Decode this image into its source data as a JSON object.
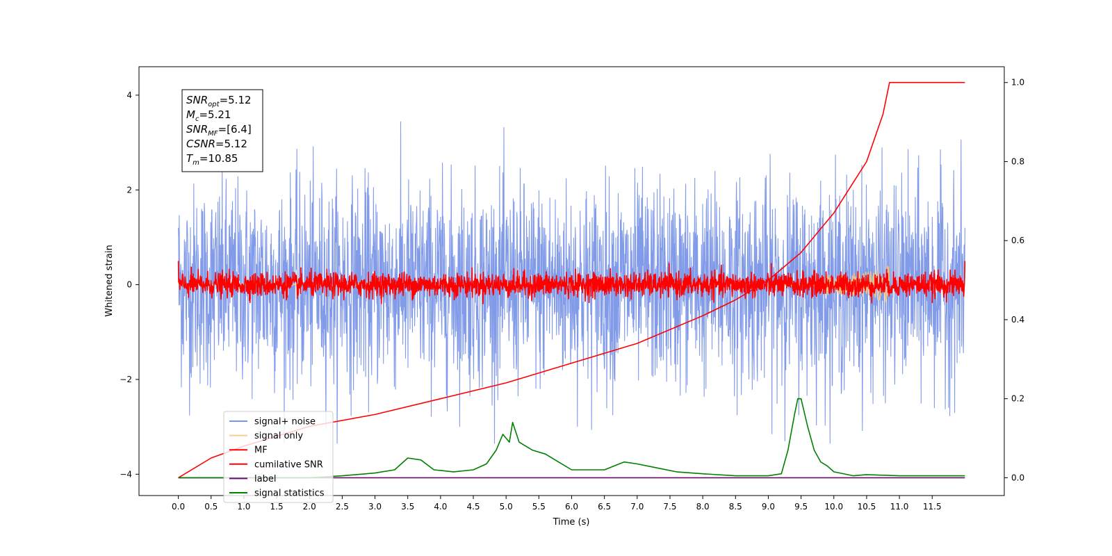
{
  "chart_data": {
    "type": "line",
    "title": "",
    "xlabel": "Time (s)",
    "ylabel": "Whitened strain",
    "xlim": [
      -0.6,
      12.6
    ],
    "ylim": [
      -4.45,
      4.6
    ],
    "y2lim": [
      -0.045,
      1.04
    ],
    "xticks": [
      0.0,
      0.5,
      1.0,
      1.5,
      2.0,
      2.5,
      3.0,
      3.5,
      4.0,
      4.5,
      5.0,
      5.5,
      6.0,
      6.5,
      7.0,
      7.5,
      8.0,
      8.5,
      9.0,
      9.5,
      10.0,
      10.5,
      11.0,
      11.5
    ],
    "xtick_labels": [
      "0.0",
      "0.5",
      "1.0",
      "1.5",
      "2.0",
      "2.5",
      "3.0",
      "3.5",
      "4.0",
      "4.5",
      "5.0",
      "5.5",
      "6.0",
      "6.5",
      "7.0",
      "7.5",
      "8.0",
      "8.5",
      "9.0",
      "9.5",
      "10.0",
      "10.5",
      "11.0",
      "11.5"
    ],
    "yticks": [
      -4,
      -2,
      0,
      2,
      4
    ],
    "ytick_labels": [
      "−4",
      "−2",
      "0",
      "2",
      "4"
    ],
    "y2ticks": [
      0.0,
      0.2,
      0.4,
      0.6,
      0.8,
      1.0
    ],
    "y2tick_labels": [
      "0.0",
      "0.2",
      "0.4",
      "0.6",
      "0.8",
      "1.0"
    ],
    "grid": false,
    "legend_position": "lower-left",
    "annotation": {
      "lines": [
        {
          "base": "SNR",
          "sub": "opt",
          "value": "=5.12"
        },
        {
          "base": "M",
          "sub": "c",
          "value": "=5.21"
        },
        {
          "base": "SNR",
          "sub": "MF",
          "value": "=[6.4]"
        },
        {
          "base": "CSNR",
          "sub": "",
          "value": "=5.12"
        },
        {
          "base": "T",
          "sub": "m",
          "value": "=10.85"
        }
      ]
    },
    "series": [
      {
        "name": "signal+ noise",
        "color": "#7b96e8",
        "axis": "left",
        "kind": "noise",
        "x_range": [
          0.0,
          12.0
        ],
        "mean": 0.0,
        "amplitude_typical": 2.0,
        "min": -3.35,
        "max": 4.15
      },
      {
        "name": "signal only",
        "color": "#f5c77e",
        "axis": "left",
        "kind": "chirp",
        "x_range": [
          0.0,
          10.85
        ],
        "peak_time": 10.85,
        "peak_amplitude": 0.55
      },
      {
        "name": "MF",
        "color": "#ff0000",
        "axis": "left",
        "kind": "noise",
        "x_range": [
          0.0,
          12.0
        ],
        "mean": 0.0,
        "amplitude_typical": 0.25,
        "min": -0.4,
        "max": 0.5
      },
      {
        "name": "cumilative SNR",
        "color": "#ff0000",
        "axis": "right",
        "kind": "curve",
        "points": [
          [
            0.0,
            0.0
          ],
          [
            0.5,
            0.05
          ],
          [
            1.0,
            0.08
          ],
          [
            2.0,
            0.13
          ],
          [
            3.0,
            0.16
          ],
          [
            4.0,
            0.2
          ],
          [
            5.0,
            0.24
          ],
          [
            6.0,
            0.29
          ],
          [
            7.0,
            0.34
          ],
          [
            8.0,
            0.41
          ],
          [
            8.5,
            0.45
          ],
          [
            9.0,
            0.5
          ],
          [
            9.5,
            0.57
          ],
          [
            10.0,
            0.67
          ],
          [
            10.5,
            0.8
          ],
          [
            10.75,
            0.92
          ],
          [
            10.85,
            1.0
          ],
          [
            12.0,
            1.0
          ]
        ]
      },
      {
        "name": "label",
        "color": "#6a0a6a",
        "axis": "right",
        "kind": "curve",
        "points": [
          [
            0.0,
            0.0
          ],
          [
            12.0,
            0.0
          ]
        ]
      },
      {
        "name": "signal statistics",
        "color": "#008000",
        "axis": "right",
        "kind": "curve",
        "points": [
          [
            0.0,
            0.0
          ],
          [
            1.0,
            0.0
          ],
          [
            2.0,
            0.0
          ],
          [
            2.5,
            0.005
          ],
          [
            3.0,
            0.012
          ],
          [
            3.3,
            0.02
          ],
          [
            3.5,
            0.05
          ],
          [
            3.7,
            0.045
          ],
          [
            3.9,
            0.02
          ],
          [
            4.2,
            0.015
          ],
          [
            4.5,
            0.02
          ],
          [
            4.7,
            0.035
          ],
          [
            4.85,
            0.07
          ],
          [
            4.95,
            0.11
          ],
          [
            5.05,
            0.09
          ],
          [
            5.1,
            0.14
          ],
          [
            5.2,
            0.09
          ],
          [
            5.4,
            0.07
          ],
          [
            5.6,
            0.06
          ],
          [
            5.8,
            0.04
          ],
          [
            6.0,
            0.02
          ],
          [
            6.3,
            0.02
          ],
          [
            6.5,
            0.02
          ],
          [
            6.8,
            0.04
          ],
          [
            7.0,
            0.035
          ],
          [
            7.3,
            0.025
          ],
          [
            7.6,
            0.015
          ],
          [
            8.0,
            0.01
          ],
          [
            8.5,
            0.005
          ],
          [
            9.0,
            0.005
          ],
          [
            9.2,
            0.01
          ],
          [
            9.3,
            0.07
          ],
          [
            9.4,
            0.16
          ],
          [
            9.45,
            0.2
          ],
          [
            9.5,
            0.2
          ],
          [
            9.6,
            0.13
          ],
          [
            9.7,
            0.07
          ],
          [
            9.8,
            0.04
          ],
          [
            9.9,
            0.03
          ],
          [
            10.0,
            0.015
          ],
          [
            10.3,
            0.005
          ],
          [
            10.5,
            0.008
          ],
          [
            11.0,
            0.005
          ],
          [
            11.5,
            0.005
          ],
          [
            12.0,
            0.005
          ]
        ]
      }
    ]
  }
}
